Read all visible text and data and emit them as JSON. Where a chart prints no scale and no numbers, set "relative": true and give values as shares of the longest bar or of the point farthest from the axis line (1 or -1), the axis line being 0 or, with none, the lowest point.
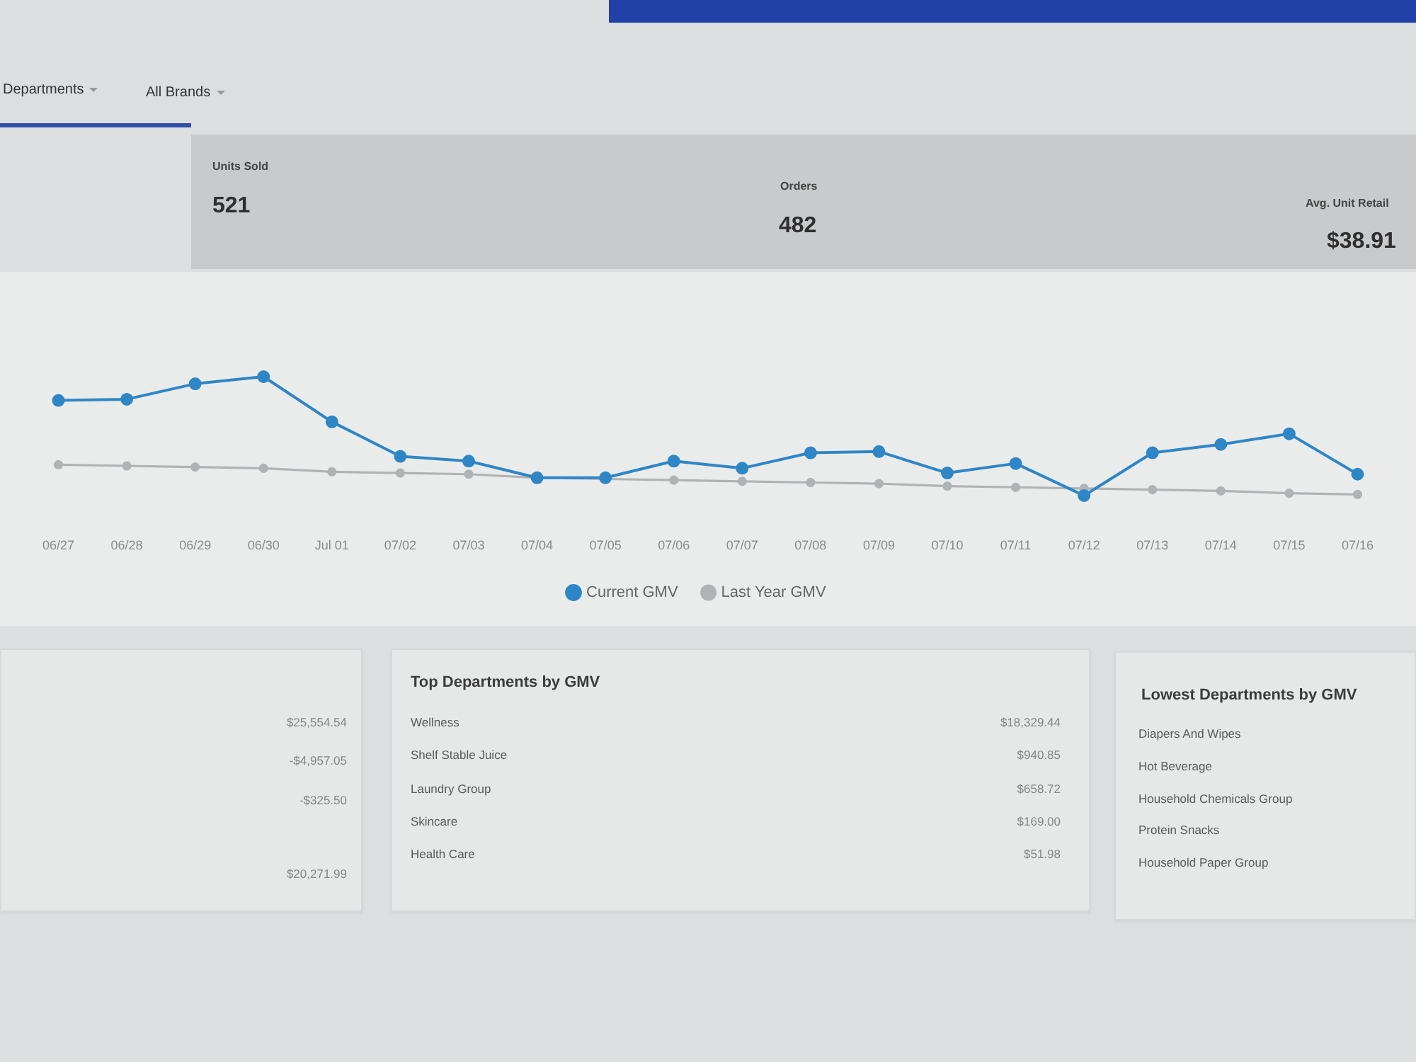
{
  "chart_data": [
    {
      "type": "other",
      "annotations": [
        "Departments",
        "All Brands",
        "Units Sold",
        "521",
        "Orders",
        "482",
        "Avg. Unit Retail",
        "$38.91"
      ]
    },
    {
      "type": "line",
      "relative": true,
      "categories": [
        "06/27",
        "06/28",
        "06/29",
        "06/30",
        "Jul 01",
        "07/02",
        "07/03",
        "07/04",
        "07/05",
        "07/06",
        "07/07",
        "07/08",
        "07/09",
        "07/10",
        "07/11",
        "07/12",
        "07/13",
        "07/14",
        "07/15",
        "07/16"
      ],
      "series": [
        {
          "name": "Current GMV",
          "color": "#2f86c6",
          "values": [
            0.8,
            0.81,
            0.94,
            1.0,
            0.62,
            0.33,
            0.29,
            0.15,
            0.15,
            0.29,
            0.23,
            0.36,
            0.37,
            0.19,
            0.27,
            0,
            0.36,
            0.43,
            0.52,
            0.18
          ]
        },
        {
          "name": "Last Year GMV",
          "color": "#b0b3b4",
          "values": [
            0.26,
            0.25,
            0.24,
            0.23,
            0.2,
            0.19,
            0.18,
            0.15,
            0.14,
            0.13,
            0.12,
            0.11,
            0.1,
            0.08,
            0.07,
            0.06,
            0.05,
            0.04,
            0.02,
            0.01
          ]
        }
      ],
      "marker": "circle",
      "legend": "bottom"
    },
    {
      "type": "other",
      "annotations": [
        "$25,554.54",
        "-$4,957.05",
        "-$325.50",
        "$20,271.99"
      ]
    },
    {
      "type": "other",
      "title": "Top Departments by GMV",
      "categories": [
        "Wellness",
        "Shelf Stable Juice",
        "Laundry Group",
        "Skincare",
        "Health Care"
      ],
      "value_labels": [
        "$18,329.44",
        "$940.85",
        "$658.72",
        "$169.00",
        "$51.98"
      ]
    },
    {
      "type": "other",
      "title": "Lowest Departments by GMV",
      "categories": [
        "Diapers And Wipes",
        "Hot Beverage",
        "Household Chemicals Group",
        "Protein Snacks",
        "Household Paper Group"
      ]
    }
  ]
}
